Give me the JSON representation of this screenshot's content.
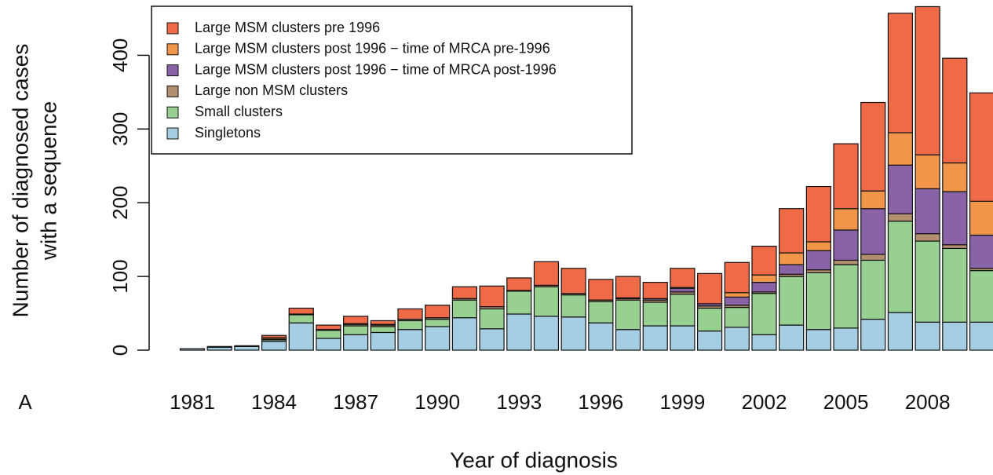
{
  "chart_data": {
    "type": "stacked-bar",
    "y_label": [
      "Number of diagnosed cases",
      "with a sequence"
    ],
    "x_label": "Year of diagnosis",
    "panel_label": "A",
    "categories": [
      "1981",
      null,
      null,
      "1984",
      null,
      null,
      "1987",
      null,
      null,
      "1990",
      null,
      null,
      "1993",
      null,
      null,
      "1996",
      null,
      null,
      "1999",
      null,
      null,
      "2002",
      null,
      null,
      "2005",
      null,
      null,
      "2008",
      null,
      null
    ],
    "series": [
      {
        "name": "Singletons",
        "color": "#a6cee3",
        "values": [
          2,
          4,
          5,
          12,
          37,
          16,
          21,
          24,
          28,
          32,
          44,
          29,
          49,
          46,
          45,
          37,
          28,
          33,
          33,
          26,
          31,
          21,
          34,
          28,
          30,
          42,
          51,
          38,
          38,
          38
        ]
      },
      {
        "name": "Small clusters",
        "color": "#98d092",
        "values": [
          0,
          0,
          0,
          2,
          11,
          11,
          12,
          8,
          12,
          10,
          24,
          27,
          31,
          40,
          30,
          29,
          40,
          32,
          43,
          31,
          27,
          56,
          66,
          77,
          86,
          80,
          124,
          110,
          100,
          70
        ]
      },
      {
        "name": "Large non MSM clusters",
        "color": "#b2906f",
        "values": [
          0,
          0,
          0,
          1,
          1,
          1,
          2,
          2,
          2,
          2,
          2,
          3,
          1,
          2,
          2,
          2,
          2,
          3,
          3,
          3,
          3,
          2,
          3,
          4,
          6,
          8,
          10,
          10,
          5,
          3
        ]
      },
      {
        "name": "Large MSM clusters post 1996 − time of MRCA post-1996",
        "color": "#8a63a6",
        "values": [
          0,
          0,
          0,
          0,
          0,
          0,
          1,
          1,
          0,
          0,
          0,
          0,
          0,
          0,
          0,
          0,
          1,
          2,
          5,
          3,
          11,
          13,
          13,
          26,
          41,
          62,
          66,
          61,
          72,
          45
        ]
      },
      {
        "name": "Large MSM clusters post 1996 − time of MRCA pre-1996",
        "color": "#f0954a",
        "values": [
          0,
          0,
          0,
          2,
          0,
          0,
          0,
          0,
          0,
          0,
          0,
          0,
          0,
          0,
          0,
          0,
          0,
          0,
          1,
          0,
          6,
          10,
          16,
          12,
          29,
          24,
          44,
          46,
          39,
          46
        ]
      },
      {
        "name": "Large MSM clusters pre 1996",
        "color": "#ef6b48",
        "values": [
          0,
          1,
          1,
          3,
          8,
          6,
          10,
          5,
          14,
          17,
          16,
          28,
          17,
          32,
          34,
          28,
          29,
          22,
          26,
          41,
          41,
          39,
          60,
          75,
          88,
          120,
          162,
          201,
          142,
          147
        ]
      }
    ],
    "ylim": [
      0,
      475
    ],
    "yticks": [
      0,
      100,
      200,
      300,
      400
    ],
    "legend": "top-left"
  }
}
